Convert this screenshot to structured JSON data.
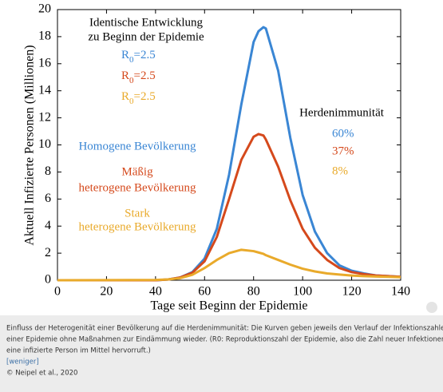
{
  "chart_data": {
    "type": "line",
    "xlabel": "Tage seit Beginn der Epidemie",
    "ylabel": "Aktuell Infizierte Personen (Millionen)",
    "xlim": [
      0,
      140
    ],
    "xticks": [
      0,
      20,
      40,
      60,
      80,
      100,
      120,
      140
    ],
    "ylim": [
      0,
      20
    ],
    "yticks": [
      0,
      2,
      4,
      6,
      8,
      10,
      12,
      14,
      16,
      18,
      20
    ],
    "grid": false,
    "x": [
      0,
      40,
      45,
      50,
      55,
      60,
      65,
      70,
      75,
      80,
      82,
      84,
      85,
      90,
      95,
      100,
      105,
      110,
      115,
      120,
      125,
      130,
      135,
      140
    ],
    "heading": [
      "Identische Entwicklung",
      "zu Beginn der Epidemie"
    ],
    "immunity_heading": "Herdenimmunität",
    "series": [
      {
        "color": "#3a86d4",
        "label_lines": [
          "Homogene Bevölkerung"
        ],
        "r0": {
          "base": "R",
          "sub": "0",
          "rest": "=2.5"
        },
        "immunity": "60%",
        "values": [
          0,
          0,
          0.05,
          0.2,
          0.6,
          1.6,
          3.8,
          7.8,
          13,
          17.6,
          18.4,
          18.7,
          18.6,
          15.5,
          10.5,
          6.3,
          3.6,
          2.0,
          1.1,
          0.7,
          0.5,
          0.35,
          0.3,
          0.25
        ]
      },
      {
        "color": "#d5491c",
        "label_lines": [
          "Mäßig",
          "heterogene Bevölkerung"
        ],
        "r0": {
          "base": "R",
          "sub": "0",
          "rest": "=2.5"
        },
        "immunity": "37%",
        "values": [
          0,
          0,
          0.05,
          0.2,
          0.55,
          1.4,
          3.2,
          6.0,
          8.9,
          10.6,
          10.8,
          10.7,
          10.4,
          8.4,
          5.9,
          3.8,
          2.4,
          1.5,
          0.9,
          0.6,
          0.45,
          0.35,
          0.3,
          0.25
        ]
      },
      {
        "color": "#e9aa2b",
        "label_lines": [
          "Stark",
          "heterogene Bevölkerung"
        ],
        "r0": {
          "base": "R",
          "sub": "0",
          "rest": "=2.5"
        },
        "immunity": "8%",
        "values": [
          0,
          0.02,
          0.06,
          0.15,
          0.4,
          0.9,
          1.5,
          2.0,
          2.25,
          2.15,
          2.05,
          1.95,
          1.85,
          1.5,
          1.15,
          0.85,
          0.65,
          0.5,
          0.42,
          0.35,
          0.3,
          0.27,
          0.25,
          0.22
        ]
      }
    ]
  },
  "caption": {
    "lines": [
      "Einfluss der Heterogenität einer Bevölkerung auf die Herdenimmunität: Die Kurven geben jeweils den Verlauf der Infektionszahlen bei",
      "einer Epidemie ohne Maßnahmen zur Eindämmung wieder. (R0: Reproduktionszahl der Epidemie, also die Zahl neuer Infektionen, die",
      "eine infizierte Person im Mittel hervorruft.)"
    ],
    "toggle": "[weniger]",
    "credit": "© Neipel et al., 2020"
  }
}
